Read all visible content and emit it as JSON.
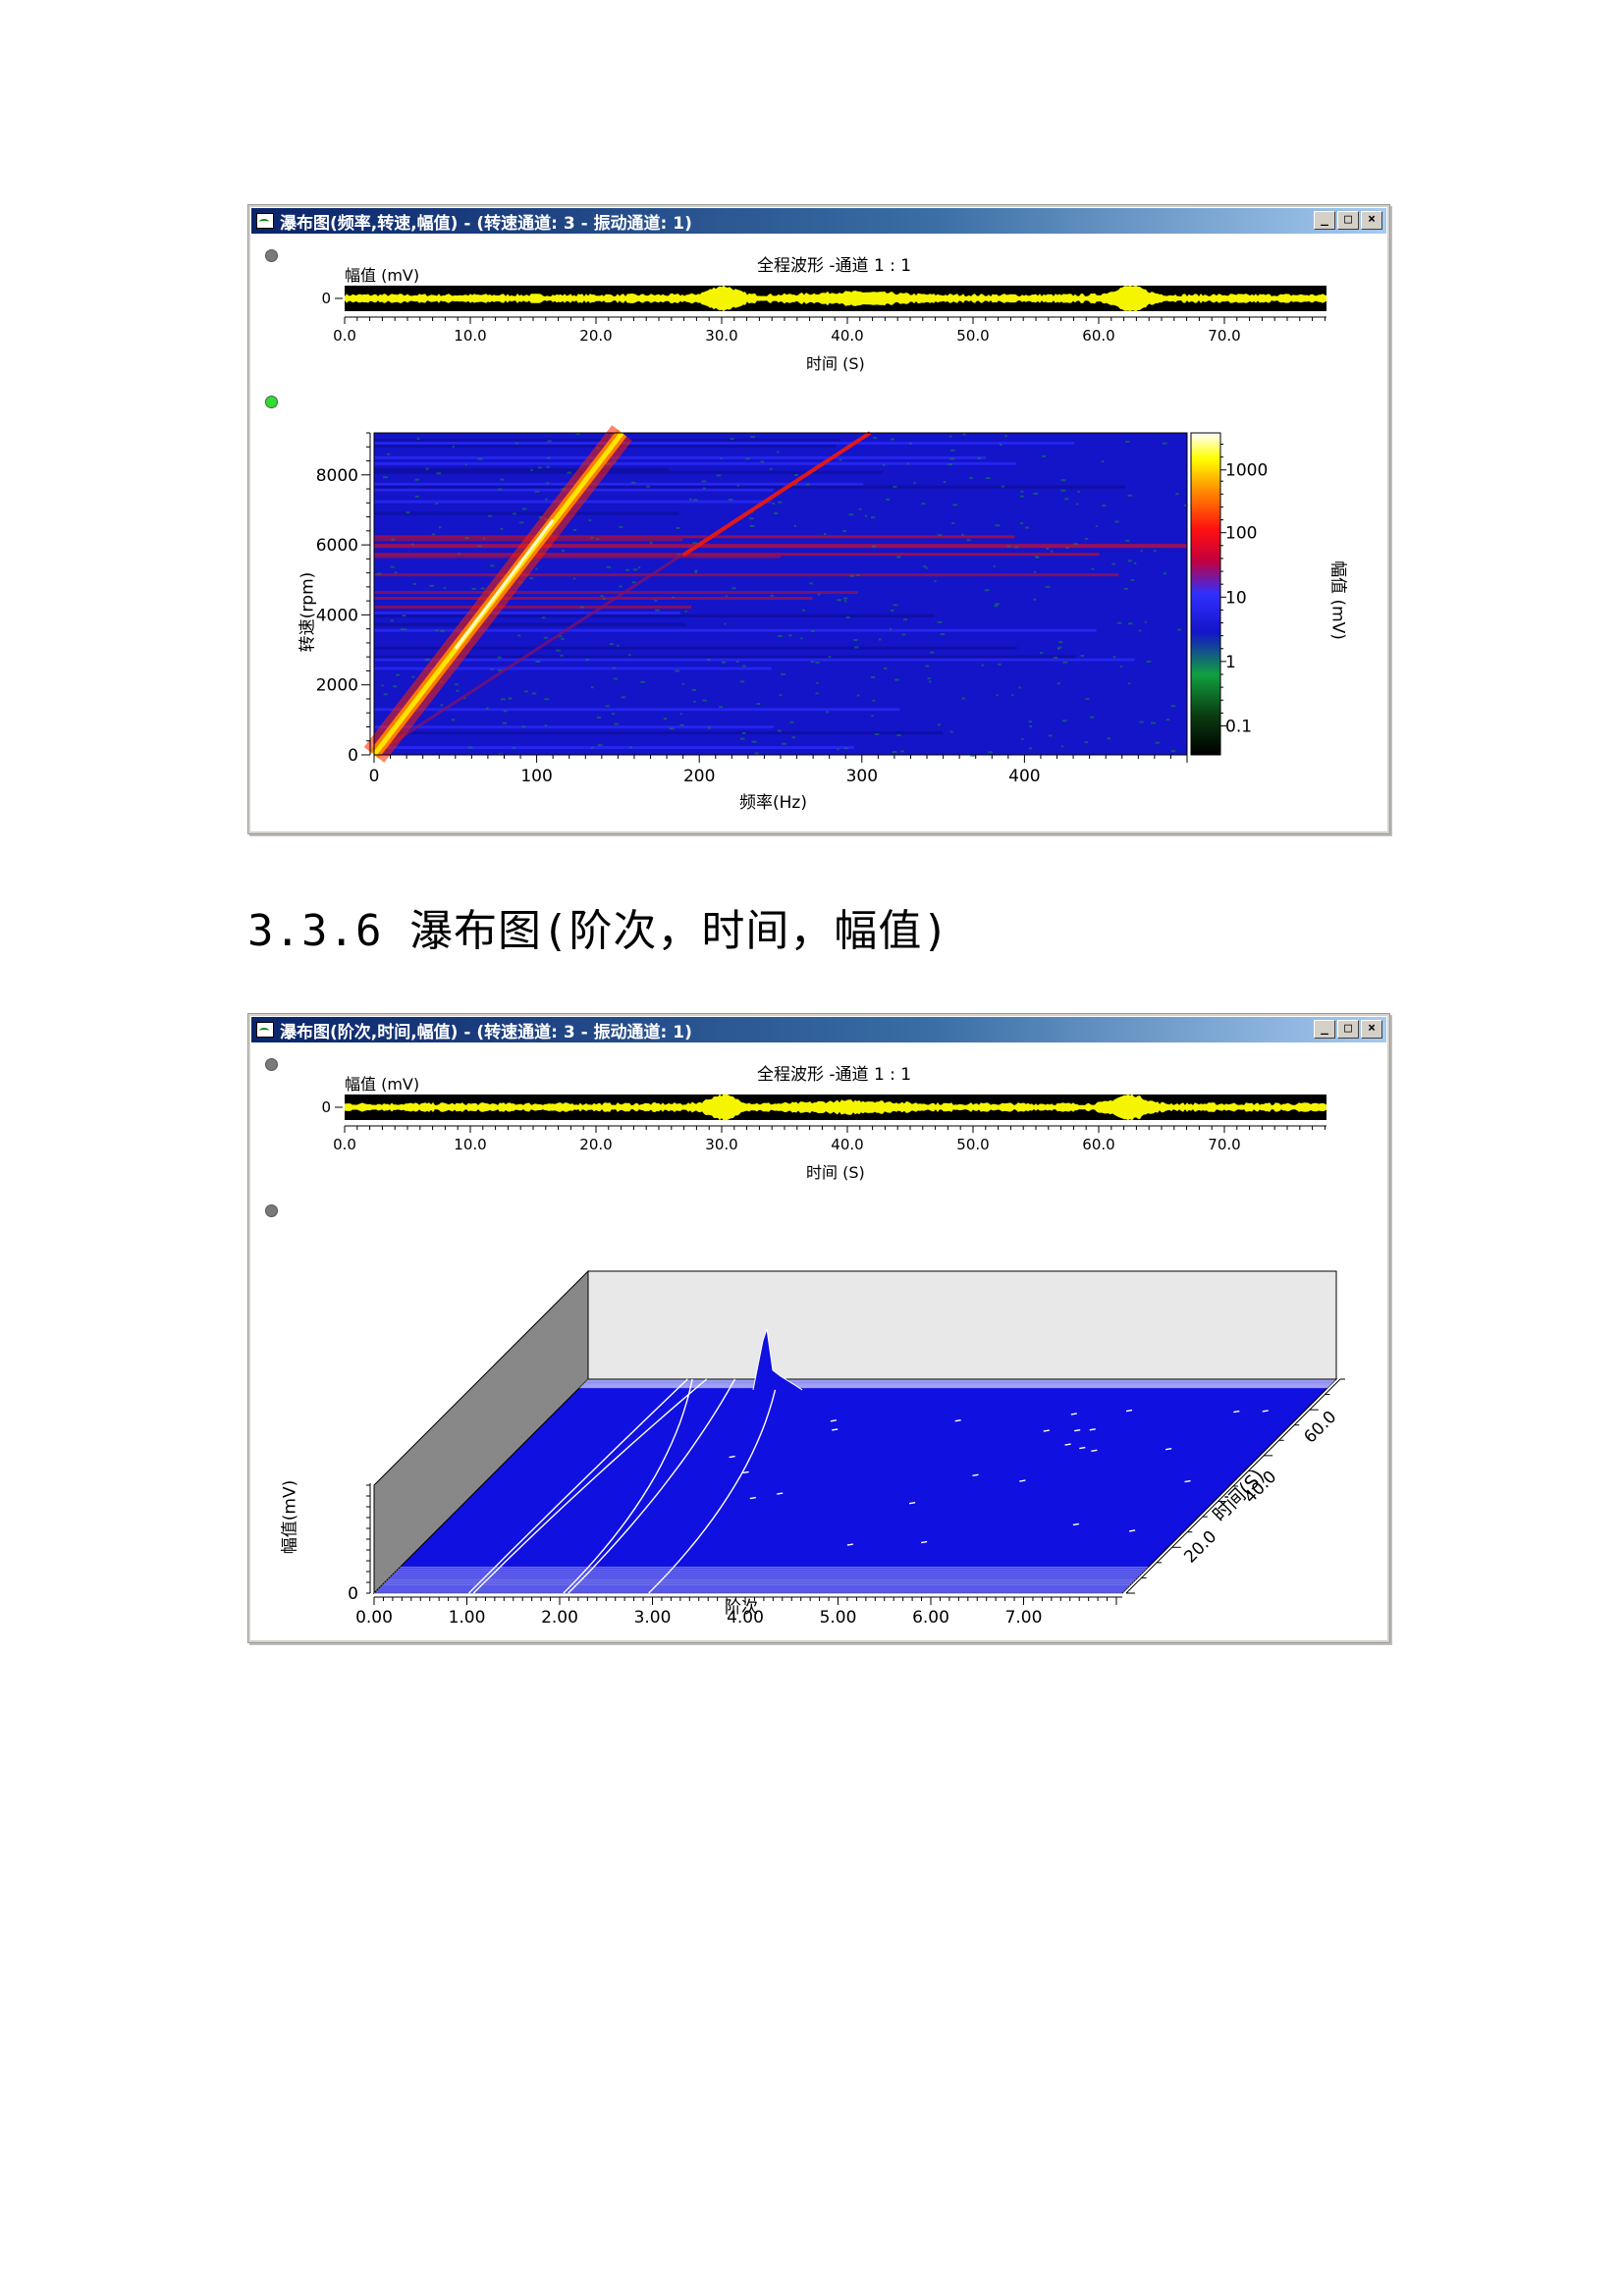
{
  "window1": {
    "title": "瀑布图(频率,转速,幅值) - (转速通道: 3 - 振动通道: 1)",
    "buttons": [
      "_",
      "□",
      "×"
    ],
    "overview": {
      "title": "全程波形 -通道 1 : 1",
      "ylabel": "幅值 (mV)",
      "ytick": "0",
      "xlabel": "时间 (S)",
      "xticks": [
        "0.0",
        "10.0",
        "20.0",
        "30.0",
        "40.0",
        "50.0",
        "60.0",
        "70.0"
      ]
    },
    "waterfall": {
      "xlabel": "频率(Hz)",
      "ylabel": "转速(rpm)",
      "xticks": [
        "0",
        "100",
        "200",
        "300",
        "400"
      ],
      "yticks": [
        "0",
        "2000",
        "4000",
        "6000",
        "8000"
      ],
      "colorbar_label": "幅值 (mV)",
      "colorbar_ticks": [
        "0.1",
        "1",
        "10",
        "100",
        "1000"
      ]
    }
  },
  "heading": "3.3.6 瀑布图(阶次，时间，幅值)",
  "window2": {
    "title": "瀑布图(阶次,时间,幅值) - (转速通道: 3 - 振动通道: 1)",
    "buttons": [
      "_",
      "□",
      "×"
    ],
    "overview": {
      "title": "全程波形 -通道 1 : 1",
      "ylabel": "幅值 (mV)",
      "ytick": "0",
      "xlabel": "时间 (S)",
      "xticks": [
        "0.0",
        "10.0",
        "20.0",
        "30.0",
        "40.0",
        "50.0",
        "60.0",
        "70.0"
      ]
    },
    "plot3d": {
      "xlabel": "阶次",
      "ylabel": "幅值(mV)",
      "ytick": "0",
      "zlabel": "时间(S)",
      "xticks": [
        "0.00",
        "1.00",
        "2.00",
        "3.00",
        "4.00",
        "5.00",
        "6.00",
        "7.00"
      ],
      "zticks": [
        "20.0",
        "40.0",
        "60.0"
      ]
    }
  },
  "colors": {
    "plot_blue": "#1010e0",
    "trace_yellow": "#f5f500",
    "title_blue": "#0a246a"
  }
}
